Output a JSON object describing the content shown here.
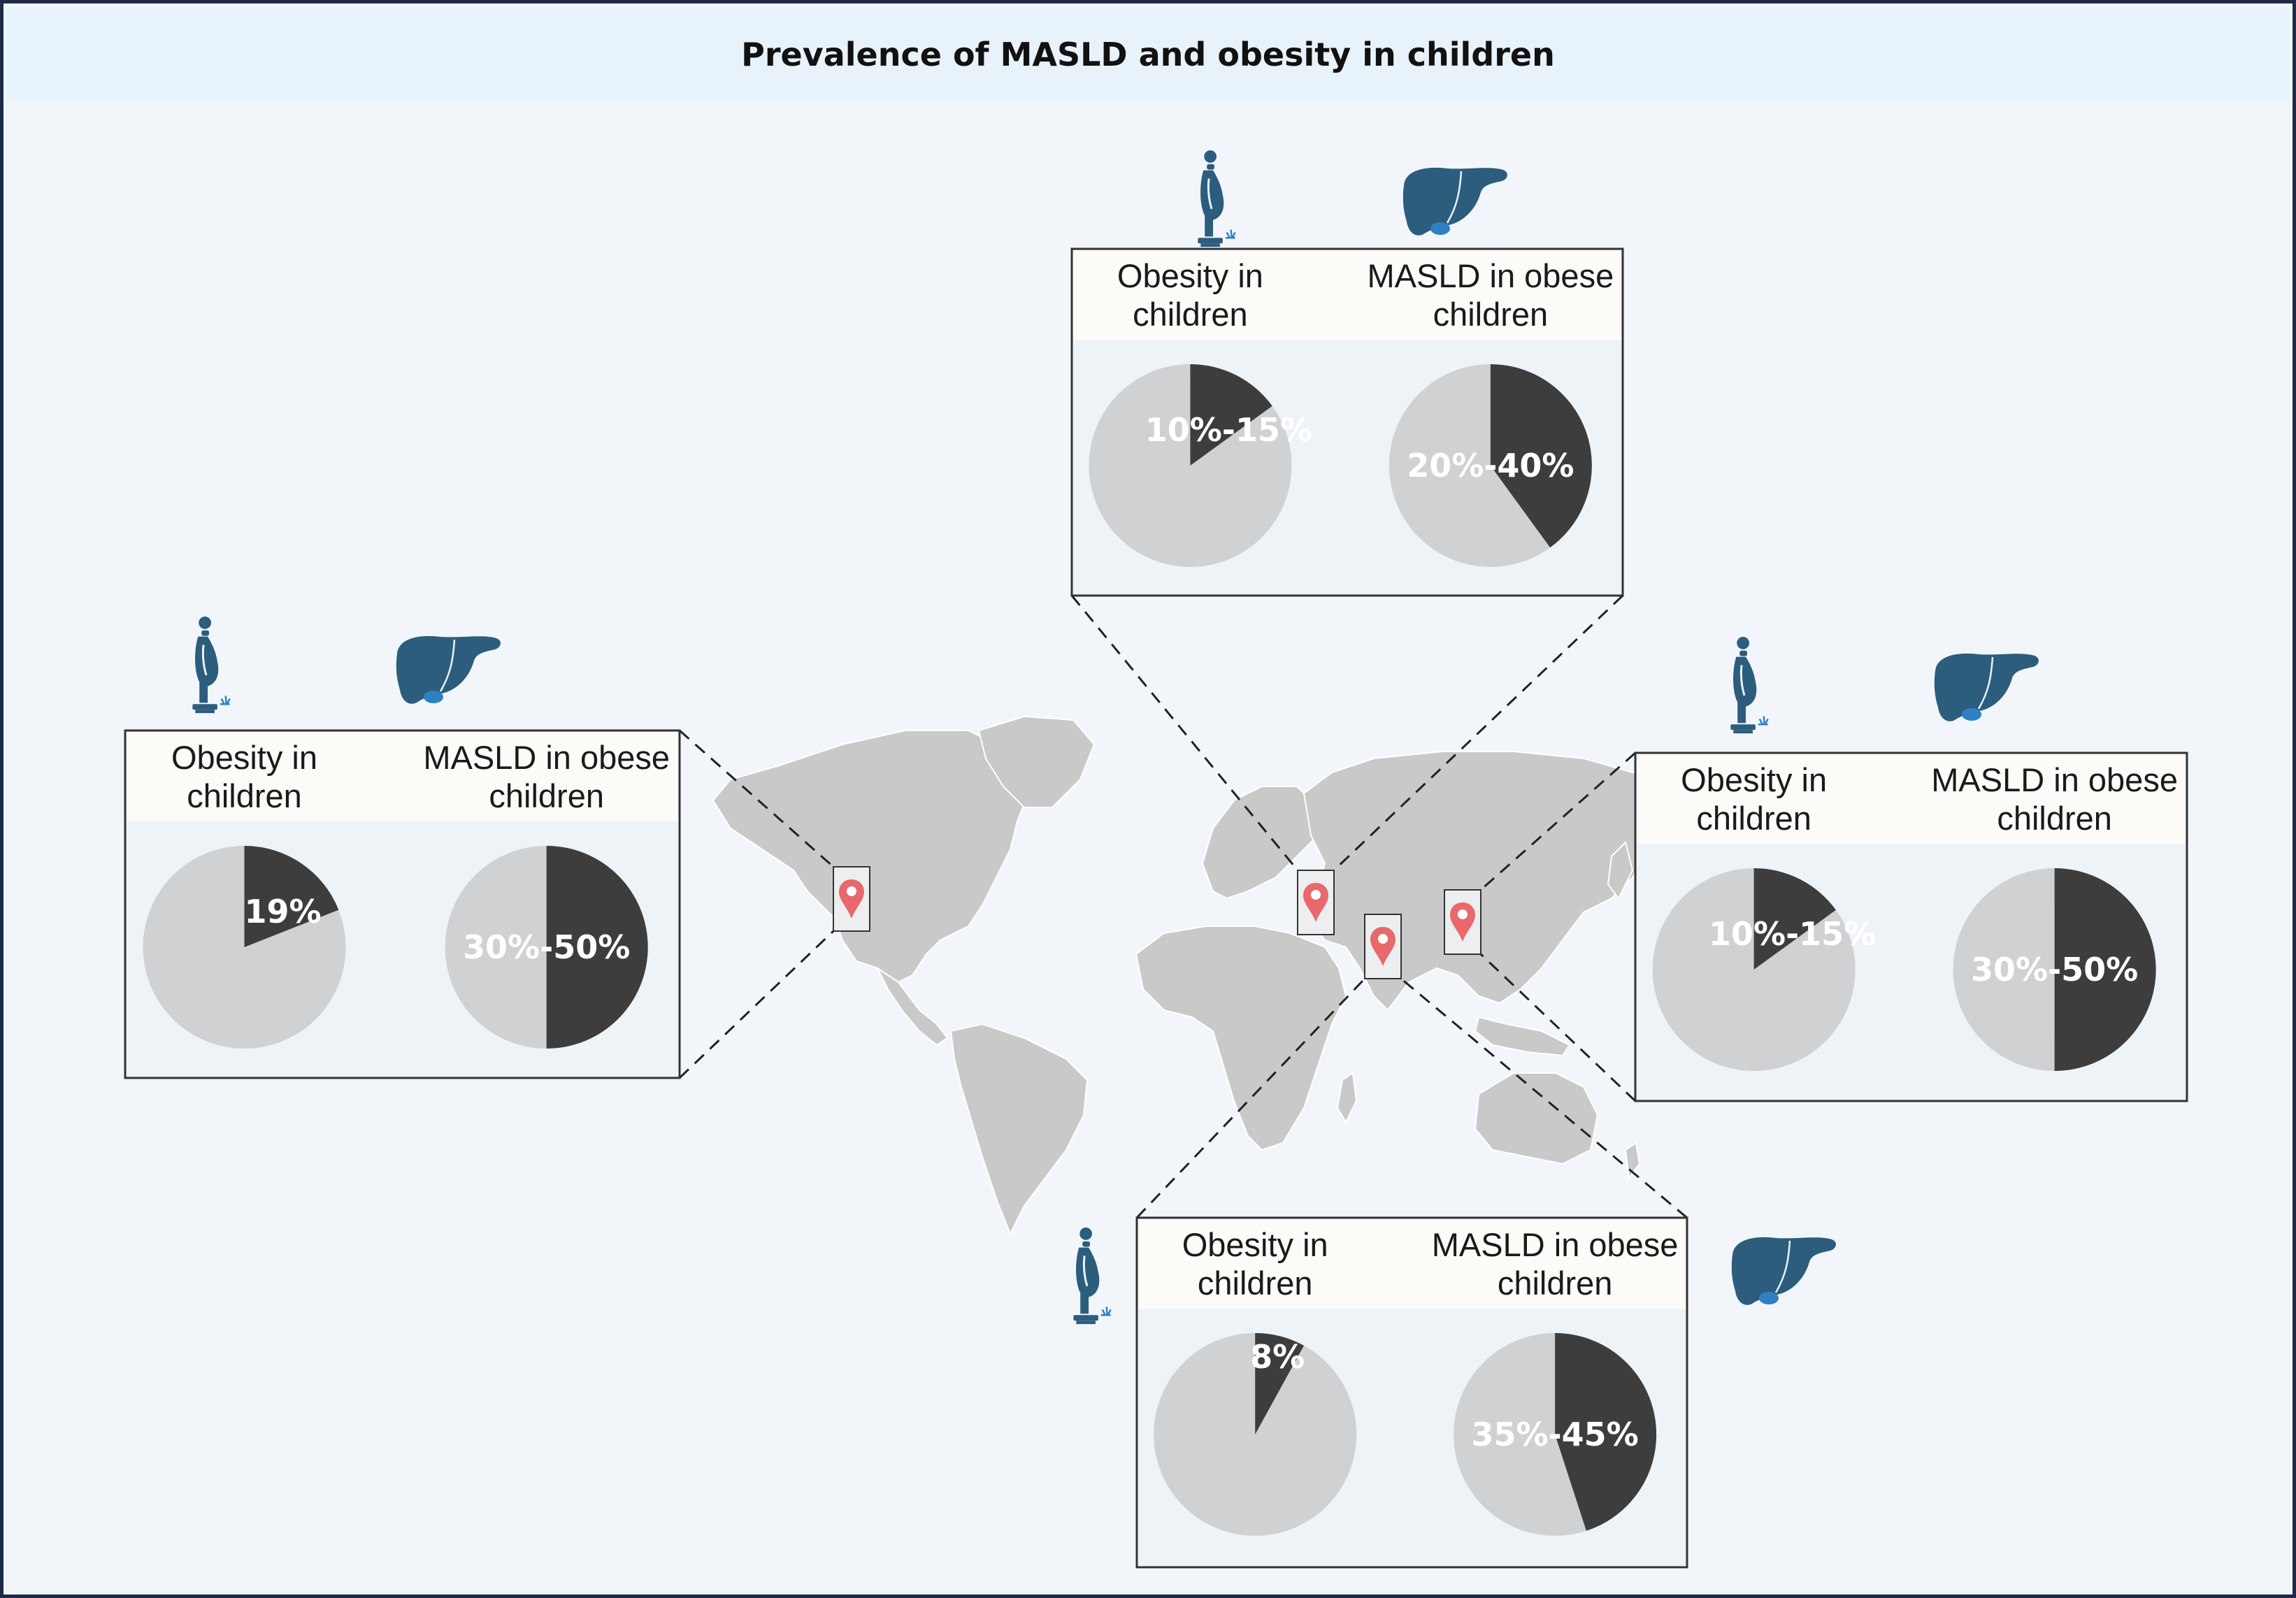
{
  "title": "Prevalence of MASLD and obesity in children",
  "colors": {
    "frame_border": "#1e2a4a",
    "background": "#f2f6fb",
    "title_band": "#e8f2fb",
    "panel_header": "#fdfbf8",
    "pie_dark": "#3d3d3d",
    "pie_light": "#cfd1d3",
    "map_land": "#c9c9c9",
    "pin": "#e8686b",
    "icon": "#2c5d7c",
    "gallbladder": "#2f7fc4"
  },
  "icons": [
    "person-on-scale-icon",
    "liver-icon",
    "location-pin-icon"
  ],
  "panel_labels": {
    "obesity_line1": "Obesity in",
    "obesity_line2": "children",
    "masld_line1": "MASLD in obese",
    "masld_line2": "children"
  },
  "chart_data": [
    {
      "type": "pie",
      "region": "north-america",
      "title": "Obesity in children",
      "label": "19%",
      "value": 19
    },
    {
      "type": "pie",
      "region": "north-america",
      "title": "MASLD in obese children",
      "label": "30%-50%",
      "value": 50
    },
    {
      "type": "pie",
      "region": "middle-east",
      "title": "Obesity in children",
      "label": "10%-15%",
      "value": 15
    },
    {
      "type": "pie",
      "region": "middle-east",
      "title": "MASLD in obese children",
      "label": "20%-40%",
      "value": 40
    },
    {
      "type": "pie",
      "region": "east-asia",
      "title": "Obesity in children",
      "label": "10%-15%",
      "value": 15
    },
    {
      "type": "pie",
      "region": "east-asia",
      "title": "MASLD in obese children",
      "label": "30%-50%",
      "value": 50
    },
    {
      "type": "pie",
      "region": "south-asia",
      "title": "Obesity in children",
      "label": "8%",
      "value": 8
    },
    {
      "type": "pie",
      "region": "south-asia",
      "title": "MASLD in obese children",
      "label": "35%-45%",
      "value": 45
    }
  ]
}
